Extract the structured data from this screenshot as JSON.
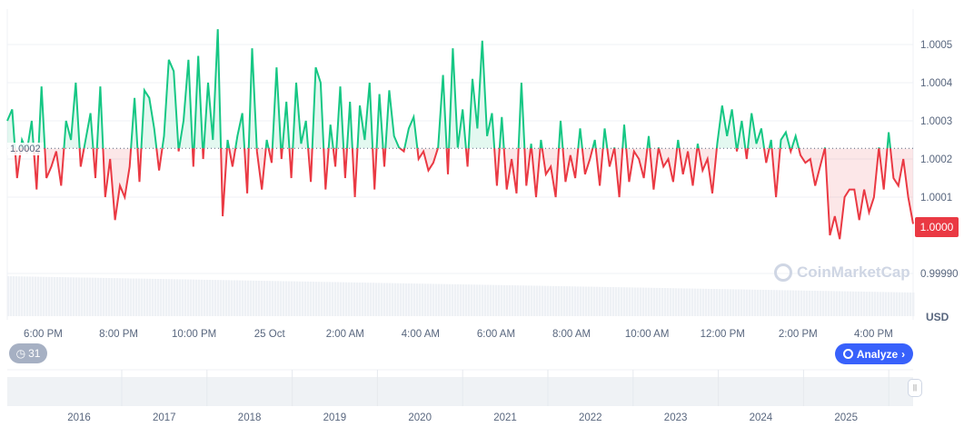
{
  "chart_data": {
    "type": "line",
    "title": "",
    "currency": "USD",
    "baseline_value": 1.000228,
    "baseline_label": "1.0002",
    "current_price": "1.0000",
    "ylim": [
      0.99987,
      1.00058
    ],
    "y_ticks": [
      "1.0005",
      "1.0004",
      "1.0003",
      "1.0002",
      "1.0001",
      "0.99990"
    ],
    "y_tick_values": [
      1.0005,
      1.0004,
      1.0003,
      1.0002,
      1.0001,
      0.9999
    ],
    "x_ticks": [
      "6:00 PM",
      "8:00 PM",
      "10:00 PM",
      "25 Oct",
      "2:00 AM",
      "4:00 AM",
      "6:00 AM",
      "8:00 AM",
      "10:00 AM",
      "12:00 PM",
      "2:00 PM",
      "4:00 PM"
    ],
    "x_tick_hours": [
      1,
      3,
      5,
      7,
      9,
      11,
      13,
      15,
      17,
      19,
      21,
      23
    ],
    "x_range_hours": [
      0.05,
      24.05
    ],
    "values_e4_above_1": [
      3.0,
      3.3,
      1.5,
      2.5,
      2.2,
      3.0,
      1.2,
      3.9,
      1.5,
      1.8,
      2.2,
      1.3,
      3.0,
      2.5,
      4.0,
      1.8,
      2.5,
      3.2,
      1.5,
      3.9,
      1.0,
      2.0,
      0.4,
      1.3,
      1.0,
      1.8,
      3.6,
      1.4,
      3.8,
      3.6,
      2.8,
      1.7,
      2.6,
      4.6,
      4.3,
      2.2,
      3.0,
      4.6,
      1.8,
      4.7,
      2.0,
      4.0,
      2.5,
      5.4,
      0.5,
      2.5,
      1.8,
      2.6,
      3.2,
      1.1,
      4.9,
      2.2,
      1.2,
      2.5,
      1.9,
      4.4,
      2.0,
      3.5,
      1.5,
      4.0,
      2.4,
      3.0,
      1.4,
      4.4,
      4.0,
      1.2,
      2.9,
      1.8,
      3.9,
      1.5,
      3.5,
      1.0,
      3.4,
      2.5,
      4.0,
      1.2,
      3.7,
      1.8,
      3.8,
      2.6,
      2.3,
      2.2,
      2.8,
      3.1,
      2.0,
      2.2,
      1.7,
      1.9,
      2.3,
      4.2,
      1.6,
      4.9,
      2.3,
      3.3,
      1.8,
      4.1,
      2.8,
      5.1,
      2.6,
      3.2,
      1.3,
      3.1,
      1.2,
      2.0,
      1.1,
      4.0,
      1.3,
      2.4,
      1.0,
      2.5,
      1.6,
      1.8,
      1.0,
      3.0,
      1.4,
      2.1,
      1.5,
      2.8,
      1.6,
      2.0,
      2.5,
      1.3,
      2.8,
      1.8,
      2.3,
      1.0,
      2.9,
      1.4,
      2.2,
      2.0,
      1.5,
      2.6,
      1.2,
      2.3,
      1.8,
      2.0,
      1.4,
      2.5,
      1.6,
      2.2,
      1.3,
      2.4,
      1.7,
      2.0,
      1.1,
      2.4,
      3.4,
      2.6,
      3.3,
      2.2,
      3.0,
      2.0,
      3.2,
      2.4,
      2.8,
      1.9,
      2.5,
      1.0,
      2.5,
      2.7,
      2.2,
      2.6,
      2.1,
      1.9,
      2.0,
      1.3,
      1.8,
      2.3,
      0.0,
      0.5,
      -0.1,
      1.0,
      1.2,
      1.2,
      0.4,
      1.2,
      0.6,
      1.0,
      2.3,
      1.2,
      2.7,
      1.5,
      1.3,
      2.0,
      1.0,
      0.3
    ],
    "navigator_years": [
      "2016",
      "2017",
      "2018",
      "2019",
      "2020",
      "2021",
      "2022",
      "2023",
      "2024",
      "2025"
    ]
  },
  "ui": {
    "history_count": "31",
    "analyze_label": "Analyze",
    "watermark": "CoinMarketCap",
    "currency_label": "USD"
  },
  "colors": {
    "up": "#16c784",
    "down": "#ea3943",
    "accent": "#3861fb"
  }
}
